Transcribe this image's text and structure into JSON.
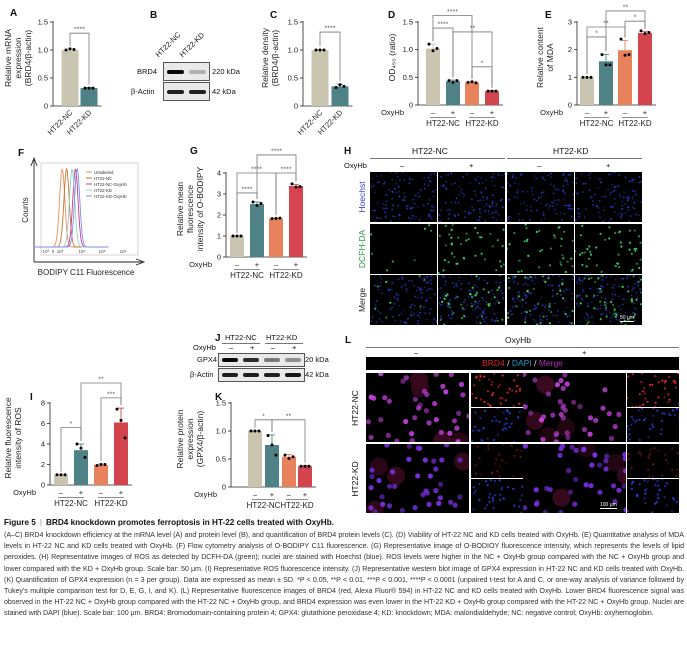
{
  "panels": {
    "A": "A",
    "B": "B",
    "C": "C",
    "D": "D",
    "E": "E",
    "F": "F",
    "G": "G",
    "H": "H",
    "I": "I",
    "J": "J",
    "K": "K",
    "L": "L"
  },
  "chart_data": [
    {
      "id": "A",
      "type": "bar",
      "ylabel": [
        "Relative mRNA",
        "expression",
        "(BRD4/β-actin)"
      ],
      "ylim": [
        0,
        1.5
      ],
      "yticks": [
        0,
        0.5,
        1.0,
        1.5
      ],
      "tick_labels": [
        "0",
        "0.5",
        "1.0",
        "1.5"
      ],
      "categories": [
        "HT22-NC",
        "HT22-KD"
      ],
      "values": [
        1.0,
        0.32
      ],
      "errors": [
        0.02,
        0.01
      ],
      "points": [
        [
          1.0,
          1.02,
          1.01
        ],
        [
          0.32,
          0.32,
          0.32
        ]
      ],
      "colors": [
        "#c9c5b1",
        "#4e8286"
      ],
      "significance": [
        {
          "from": 0,
          "to": 1,
          "label": "****",
          "y": 1.3
        }
      ]
    },
    {
      "id": "C",
      "type": "bar",
      "ylabel": [
        "Relative density",
        "(BRD4/β-actin)"
      ],
      "ylim": [
        0,
        1.5
      ],
      "yticks": [
        0,
        0.5,
        1.0,
        1.5
      ],
      "tick_labels": [
        "0",
        "0.5",
        "1.0",
        "1.5"
      ],
      "categories": [
        "HT22-NC",
        "HT22-KD"
      ],
      "values": [
        1.0,
        0.35
      ],
      "errors": [
        0.01,
        0.04
      ],
      "points": [
        [
          1.0,
          1.0,
          1.0
        ],
        [
          0.33,
          0.38,
          0.35
        ]
      ],
      "colors": [
        "#c9c5b1",
        "#4e8286"
      ],
      "significance": [
        {
          "from": 0,
          "to": 1,
          "label": "****",
          "y": 1.32
        }
      ]
    },
    {
      "id": "D",
      "type": "bar",
      "ylabel": [
        "OD₄₅₀ (ratio)"
      ],
      "ylim": [
        0,
        1.5
      ],
      "yticks": [
        0,
        0.5,
        1.0,
        1.5
      ],
      "tick_labels": [
        "0",
        "0.5",
        "1.0",
        "1.5"
      ],
      "oxyhb_label": "OxyHb",
      "oxyhb": [
        "–",
        "+",
        "–",
        "+"
      ],
      "groups": [
        "HT22-NC",
        "HT22-KD"
      ],
      "values": [
        1.02,
        0.43,
        0.41,
        0.25
      ],
      "errors": [
        0.08,
        0.02,
        0.01,
        0.01
      ],
      "points": [
        [
          1.1,
          0.98,
          1.02
        ],
        [
          0.44,
          0.41,
          0.44
        ],
        [
          0.41,
          0.42,
          0.4
        ],
        [
          0.25,
          0.25,
          0.25
        ]
      ],
      "colors": [
        "#c9c5b1",
        "#4e8286",
        "#e8825c",
        "#d4444e"
      ],
      "significance": [
        {
          "from": 0,
          "to": 2,
          "label": "****",
          "y": 1.62
        },
        {
          "from": 0,
          "to": 1,
          "label": "****",
          "y": 1.39
        },
        {
          "from": 1,
          "to": 3,
          "label": "**",
          "y": 1.32
        },
        {
          "from": 2,
          "to": 3,
          "label": "*",
          "y": 0.69
        }
      ]
    },
    {
      "id": "E",
      "type": "bar",
      "ylabel": [
        "Relative content",
        "of MDA"
      ],
      "ylim": [
        0,
        3
      ],
      "yticks": [
        0,
        1,
        2,
        3
      ],
      "tick_labels": [
        "0",
        "1",
        "2",
        "3"
      ],
      "oxyhb_label": "OxyHb",
      "oxyhb": [
        "–",
        "+",
        "–",
        "+"
      ],
      "groups": [
        "HT22-NC",
        "HT22-KD"
      ],
      "values": [
        1.0,
        1.58,
        1.98,
        2.6
      ],
      "errors": [
        0.01,
        0.25,
        0.35,
        0.05
      ],
      "points": [
        [
          1.0,
          1.0,
          1.0
        ],
        [
          1.82,
          1.45,
          1.45
        ],
        [
          2.38,
          1.8,
          1.82
        ],
        [
          2.68,
          2.58,
          2.62
        ]
      ],
      "colors": [
        "#c9c5b1",
        "#4e8286",
        "#e8825c",
        "#d4444e"
      ],
      "significance": [
        {
          "from": 0,
          "to": 1,
          "label": "*",
          "y": 2.46
        },
        {
          "from": 0,
          "to": 2,
          "label": "**",
          "y": 2.82
        },
        {
          "from": 2,
          "to": 3,
          "label": "*",
          "y": 3.03
        },
        {
          "from": 1,
          "to": 3,
          "label": "**",
          "y": 3.4
        }
      ]
    },
    {
      "id": "G",
      "type": "bar",
      "ylabel": [
        "Relative mean",
        "fluorescence",
        "intensity of O-BODIPY"
      ],
      "ylim": [
        0,
        4
      ],
      "yticks": [
        0,
        1,
        2,
        3,
        4
      ],
      "tick_labels": [
        "0",
        "1",
        "2",
        "3",
        "4"
      ],
      "oxyhb_label": "OxyHb",
      "oxyhb": [
        "–",
        "+",
        "–",
        "+"
      ],
      "groups": [
        "HT22-NC",
        "HT22-KD"
      ],
      "values": [
        1.0,
        2.52,
        1.83,
        3.38
      ],
      "errors": [
        0.01,
        0.1,
        0.02,
        0.08
      ],
      "points": [
        [
          1.0,
          1.0,
          1.0
        ],
        [
          2.62,
          2.45,
          2.55
        ],
        [
          1.83,
          1.84,
          1.85
        ],
        [
          3.48,
          3.33,
          3.35
        ]
      ],
      "colors": [
        "#c9c5b1",
        "#4e8286",
        "#e8825c",
        "#d4444e"
      ],
      "significance": [
        {
          "from": 0,
          "to": 1,
          "label": "****",
          "y": 3.05
        },
        {
          "from": 0,
          "to": 2,
          "label": "****",
          "y": 4.0
        },
        {
          "from": 2,
          "to": 3,
          "label": "****",
          "y": 4.0
        },
        {
          "from": 1,
          "to": 3,
          "label": "****",
          "y": 4.86
        }
      ]
    },
    {
      "id": "I",
      "type": "bar",
      "ylabel": [
        "Relative fluorescence",
        "intensity of ROS"
      ],
      "ylim": [
        0,
        8
      ],
      "yticks": [
        0,
        2,
        4,
        6,
        8
      ],
      "tick_labels": [
        "0",
        "2",
        "4",
        "6",
        "8"
      ],
      "oxyhb_label": "OxyHb",
      "oxyhb": [
        "–",
        "+",
        "–",
        "+"
      ],
      "groups": [
        "HT22-NC",
        "HT22-KD"
      ],
      "values": [
        1.0,
        3.4,
        1.95,
        6.1
      ],
      "errors": [
        0.01,
        0.6,
        0.1,
        1.4
      ],
      "points": [
        [
          1.0,
          1.0,
          1.0
        ],
        [
          4.0,
          3.6,
          2.7
        ],
        [
          1.9,
          2.0,
          2.0
        ],
        [
          7.4,
          6.3,
          4.6
        ]
      ],
      "colors": [
        "#c9c5b1",
        "#4e8286",
        "#e8825c",
        "#d4444e"
      ],
      "significance": [
        {
          "from": 0,
          "to": 1,
          "label": "*",
          "y": 5.6
        },
        {
          "from": 2,
          "to": 3,
          "label": "***",
          "y": 8.5
        },
        {
          "from": 1,
          "to": 3,
          "label": "**",
          "y": 9.95
        }
      ]
    },
    {
      "id": "K",
      "type": "bar",
      "ylabel": [
        "Relative protein",
        "expression",
        "(GPX4/β-actin)"
      ],
      "ylim": [
        0,
        1.5
      ],
      "yticks": [
        0,
        0.5,
        1.0,
        1.5
      ],
      "tick_labels": [
        "0",
        "0.5",
        "1.0",
        "1.5"
      ],
      "oxyhb_label": "OxyHb",
      "oxyhb": [
        "–",
        "+",
        "–",
        "+"
      ],
      "groups": [
        "HT22-NC",
        "HT22-KD"
      ],
      "values": [
        1.0,
        0.75,
        0.54,
        0.37
      ],
      "errors": [
        0.01,
        0.18,
        0.04,
        0.01
      ],
      "points": [
        [
          1.0,
          1.0,
          1.0
        ],
        [
          0.92,
          0.75,
          0.57
        ],
        [
          0.57,
          0.51,
          0.54
        ],
        [
          0.37,
          0.37,
          0.37
        ]
      ],
      "colors": [
        "#c9c5b1",
        "#4e8286",
        "#e8825c",
        "#d4444e"
      ],
      "significance": [
        {
          "from": 0,
          "to": 1,
          "label": "*",
          "y": 1.2
        },
        {
          "from": 1,
          "to": 3,
          "label": "**",
          "y": 1.2
        }
      ]
    },
    {
      "id": "F",
      "type": "line",
      "xlabel": "BODIPY C11 Fluorescence",
      "ylabel": "Counts",
      "xtick_labels": [
        "-10³",
        "0",
        "10³",
        "10⁴",
        "10⁵",
        "10⁶"
      ],
      "series": [
        {
          "name": "Unlabeled",
          "color": "#ef8a5a",
          "peak_log": 3.1
        },
        {
          "name": "HT22-NC",
          "color": "#c8762e",
          "peak_log": 3.3
        },
        {
          "name": "HT22-NC-OxyHb",
          "color": "#c8369a",
          "peak_log": 3.7
        },
        {
          "name": "HT22-KD",
          "color": "#8fd0c0",
          "peak_log": 3.55
        },
        {
          "name": "HT22-KD-OxyHb",
          "color": "#7a8fe0",
          "peak_log": 3.78
        }
      ],
      "legend": "top-right"
    }
  ],
  "blot_B": {
    "columns": [
      "HT22-NC",
      "HT22-KD"
    ],
    "rows": [
      {
        "label": "BRD4",
        "size": "220 kDa",
        "intensity": [
          1.0,
          0.25
        ]
      },
      {
        "label": "β-Actin",
        "size": "42 kDa",
        "intensity": [
          0.9,
          0.9
        ]
      }
    ]
  },
  "blot_J": {
    "groups": [
      "HT22-NC",
      "HT22-KD"
    ],
    "oxyhb_label": "OxyHb",
    "oxyhb": [
      "–",
      "+",
      "–",
      "+"
    ],
    "rows": [
      {
        "label": "GPX4",
        "size": "20 kDa",
        "intensity": [
          1.0,
          0.85,
          0.5,
          0.4
        ]
      },
      {
        "label": "β-Actin",
        "size": "42 kDa",
        "intensity": [
          0.9,
          0.9,
          0.9,
          0.95
        ]
      }
    ]
  },
  "imaging_H": {
    "groups": [
      "HT22-NC",
      "HT22-KD"
    ],
    "oxyhb_label": "OxyHb",
    "oxyhb": [
      "–",
      "+",
      "–",
      "+"
    ],
    "rows": [
      {
        "label": "Hoechst",
        "color": "#3b3bd6"
      },
      {
        "label": "DCFH-DA",
        "color": "#2a9a4a"
      },
      {
        "label": "Merge",
        "color": "#222"
      }
    ],
    "scale_bar": "50 μm"
  },
  "imaging_L": {
    "title": "OxyHb",
    "conditions": [
      "–",
      "+"
    ],
    "stain_title": {
      "brd4": "BRD4",
      "sep1": " / ",
      "dapi": "DAPI",
      "sep2": " / ",
      "merge": "Merge"
    },
    "stain_colors": {
      "brd4": "#e02828",
      "dapi": "#1a9ad6",
      "merge": "#b030b0"
    },
    "rows": [
      "HT22-NC",
      "HT22-KD"
    ],
    "scale_bar": "100 μm"
  },
  "caption": {
    "title_num": "Figure 5",
    "title": "BRD4 knockdown promotes ferroptosis in HT-22 cells treated with OxyHb.",
    "body": "(A–C) BRD4 knockdown efficiency at the mRNA level (A) and protein level (B), and quantification of BRD4 protein levels (C). (D) Viability of HT-22 NC and KD cells treated with OxyHb. (E) Quantitative analysis of MDA levels in HT-22 NC and KD cells treated with OxyHb. (F) Flow cytometry analysis of O-BODIPY C11 fluorescence. (G) Representative image of O-BODIOY fluorescence intensity, which represents the levels of lipid peroxides. (H) Representative images of ROS as detected by DCFH-DA (green); nuclei are stained with Hoechst (blue). ROS levels were higher in the NC + OxyHb group compared with the NC + OxyHb group and lower compared with the KD + OxyHb group. Scale bar: 50 μm. (I) Representative ROS fluorescence intensity. (J) Representative western blot image of GPX4 expression in HT-22 NC and KD cells treated with OxyHb. (K) Quantification of GPX4 expression (n = 3 per group). Data are expressed as mean ± SD. *P < 0.05, **P < 0.01, ***P < 0.001, ****P < 0.0001 (unpaired t-test for A and C, or one-way analysis of variance followed by Tukey's multiple comparison test for D, E, G, I, and K). (L) Representative fluorescence images of BRD4 (red, Alexa Fluor® 594) in HT-22 NC and KD cells treated with OxyHb. Lower BRD4 fluorescence signal was observed in the HT-22 NC + OxyHb group compared with the HT-22 NC + OxyHb group, and BRD4 expression was even lower in the HT-22 KD + OxyHb group compared with the HT-22 NC + OxyHb group. Nuclei are stained with DAPI (blue). Scale bar: 100 μm. BRD4: Bromodomain-containing protein 4; GPX4: glutathione peroxidase 4; KD: knockdown; MDA: malondialdehyde; NC: negative control; OxyHb: oxyhemoglobin."
  }
}
